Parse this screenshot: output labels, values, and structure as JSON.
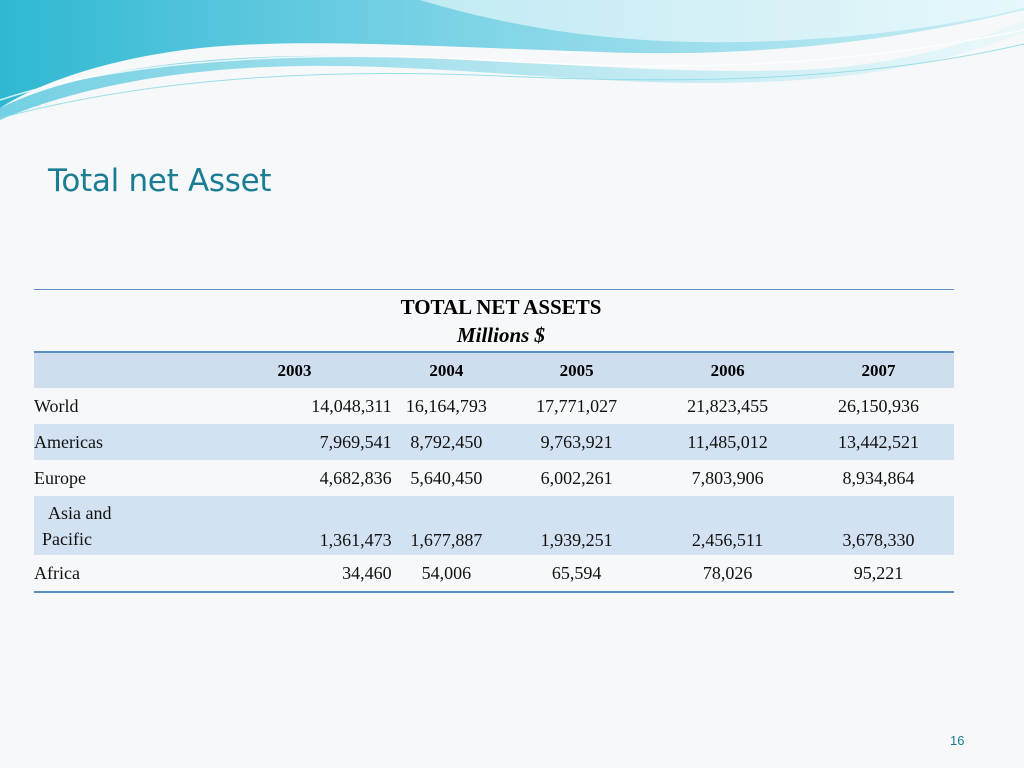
{
  "slide": {
    "title": "Total net Asset",
    "page_number": "16"
  },
  "table": {
    "title": "TOTAL NET ASSETS",
    "subtitle": "Millions $",
    "years": [
      "2003",
      "2004",
      "2005",
      "2006",
      "2007"
    ],
    "rows": [
      {
        "region": "World",
        "values": [
          "14,048,311",
          "16,164,793",
          "17,771,027",
          "21,823,455",
          "26,150,936"
        ]
      },
      {
        "region": "Americas",
        "values": [
          "7,969,541",
          "8,792,450",
          "9,763,921",
          "11,485,012",
          "13,442,521"
        ]
      },
      {
        "region": "Europe",
        "values": [
          "4,682,836",
          "5,640,450",
          "6,002,261",
          "7,803,906",
          "8,934,864"
        ]
      },
      {
        "region_line1": "Asia and",
        "region_line2": "Pacific",
        "values": [
          "1,361,473",
          "1,677,887",
          "1,939,251",
          "2,456,511",
          "3,678,330"
        ]
      },
      {
        "region": "Africa",
        "values": [
          "34,460",
          "54,006",
          "65,594",
          "78,026",
          "95,221"
        ]
      }
    ]
  },
  "colors": {
    "title": "#1b7d93",
    "band_light": "#cfdeef",
    "rule": "#5b8fbf",
    "wave_dark": "#36c0d9",
    "wave_light": "#a6e4ef"
  }
}
